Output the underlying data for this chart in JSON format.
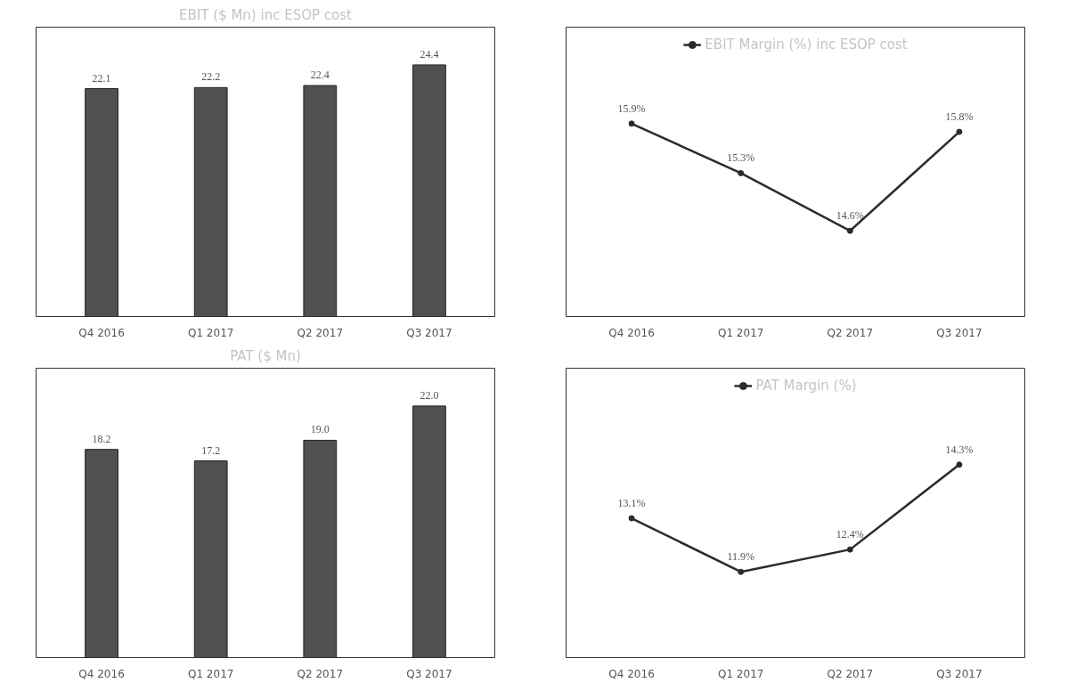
{
  "chart_data": [
    {
      "type": "bar",
      "title": "EBIT ($ Mn) inc ESOP cost",
      "categories": [
        "Q4 2016",
        "Q1 2017",
        "Q2 2017",
        "Q3 2017"
      ],
      "values": [
        22.1,
        22.2,
        22.4,
        24.4
      ],
      "value_labels": [
        "22.1",
        "22.2",
        "22.4",
        "24.4"
      ],
      "color": "#505050",
      "grid": false,
      "legend": false
    },
    {
      "type": "line",
      "categories": [
        "Q4 2016",
        "Q1 2017",
        "Q2 2017",
        "Q3 2017"
      ],
      "series": [
        {
          "name": "EBIT Margin (%) inc ESOP cost",
          "color": "#2b2b2b",
          "values": [
            15.9,
            15.3,
            14.6,
            15.8
          ],
          "value_labels": [
            "15.9%",
            "15.3%",
            "14.6%",
            "15.8%"
          ]
        }
      ],
      "marker": "circle",
      "line_style": "solid",
      "grid": false,
      "legend": "top"
    },
    {
      "type": "bar",
      "title": "PAT ($ Mn)",
      "categories": [
        "Q4 2016",
        "Q1 2017",
        "Q2 2017",
        "Q3 2017"
      ],
      "values": [
        18.2,
        17.2,
        19.0,
        22.0
      ],
      "value_labels": [
        "18.2",
        "17.2",
        "19.0",
        "22.0"
      ],
      "color": "#505050",
      "grid": false,
      "legend": false
    },
    {
      "type": "line",
      "categories": [
        "Q4 2016",
        "Q1 2017",
        "Q2 2017",
        "Q3 2017"
      ],
      "series": [
        {
          "name": "PAT Margin (%)",
          "color": "#2b2b2b",
          "values": [
            13.1,
            11.9,
            12.4,
            14.3
          ],
          "value_labels": [
            "13.1%",
            "11.9%",
            "12.4%",
            "14.3%"
          ]
        }
      ],
      "marker": "circle",
      "line_style": "solid",
      "grid": false,
      "legend": "top"
    }
  ]
}
